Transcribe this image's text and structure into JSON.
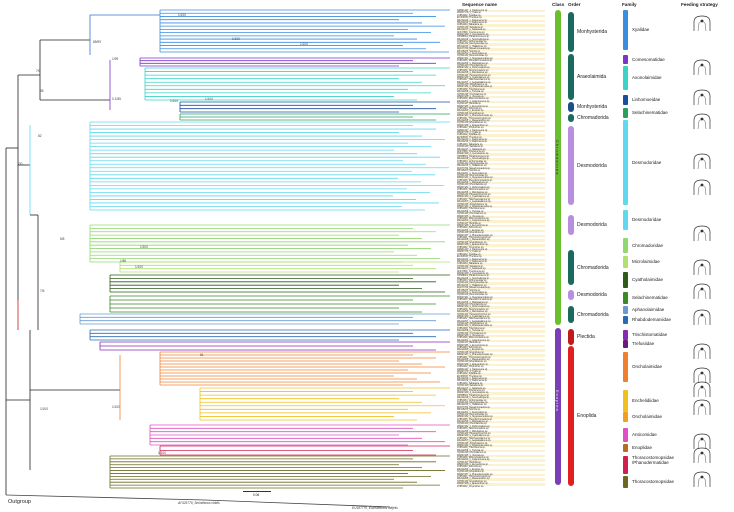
{
  "headers": {
    "sequence_names": "Sequence name",
    "class": "Class",
    "order": "Order",
    "family": "Family",
    "feeding_strategy": "Feeding strategy"
  },
  "classes": [
    {
      "label": "Chromadorea",
      "color": "#6abf2e"
    },
    {
      "label": "Enoplea",
      "color": "#7b3fb5"
    }
  ],
  "orders": [
    {
      "label": "Monhysterida",
      "color": "#1a6b5e"
    },
    {
      "label": "Araeolaimida",
      "color": "#1a6b5e"
    },
    {
      "label": "Monhysterida",
      "color": "#1a4f8a"
    },
    {
      "label": "Chromadorida",
      "color": "#1a6b5e"
    },
    {
      "label": "Desmodorida",
      "color": "#b88ee0"
    },
    {
      "label": "Desmodorida",
      "color": "#b88ee0"
    },
    {
      "label": "Chromadorida",
      "color": "#1a6b5e"
    },
    {
      "label": "Desmodorida",
      "color": "#b88ee0"
    },
    {
      "label": "Chromadorida",
      "color": "#1a6b5e"
    },
    {
      "label": "Plectida",
      "color": "#c01a1a"
    },
    {
      "label": "Enoplida",
      "color": "#e02020"
    }
  ],
  "families": [
    {
      "label": "Xyalidae",
      "color": "#3a8ee0"
    },
    {
      "label": "Comesomatidae",
      "color": "#7b35c8"
    },
    {
      "label": "Axonolaimidae",
      "color": "#3ad3c8"
    },
    {
      "label": "Linhomoeidae",
      "color": "#1a4fa0"
    },
    {
      "label": "Selachinematidae",
      "color": "#2aa060"
    },
    {
      "label": "Desmodoridae",
      "color": "#60d8f0"
    },
    {
      "label": "Desmodoridae",
      "color": "#60d8f0"
    },
    {
      "label": "Chromadoridae",
      "color": "#90d870"
    },
    {
      "label": "Microlaimidae",
      "color": "#b0e070"
    },
    {
      "label": "Cyatholaimidae",
      "color": "#2f5a18"
    },
    {
      "label": "Selachinematidae",
      "color": "#3a8a2a"
    },
    {
      "label": "Aphanolaimidae",
      "color": "#6a9ad0"
    },
    {
      "label": "Rhabdodemaniidae",
      "color": "#2a6ab0"
    },
    {
      "label": "Trischistomatidae",
      "color": "#8a2ab0"
    },
    {
      "label": "Trefusiidae",
      "color": "#6a1a80"
    },
    {
      "label": "Oncholaimidae",
      "color": "#f08030"
    },
    {
      "label": "Enchelidiidae",
      "color": "#f0c020"
    },
    {
      "label": "Oncholaimidae",
      "color": "#f0a020"
    },
    {
      "label": "Anticomidae",
      "color": "#e050c0"
    },
    {
      "label": "Enoplidae",
      "color": "#b07020"
    },
    {
      "label": "Thoracostomopsidae /Phanodermatidae",
      "color": "#d02050"
    },
    {
      "label": "Thoracostomopsidae",
      "color": "#6a6a20"
    }
  ],
  "outgroup": {
    "label": "Outgroup",
    "taxa": [
      "AY325779_Sminthurus viridis",
      "EU187770_Euchaetoleis mitjelis"
    ]
  },
  "scale_bar": "0.06",
  "node_labels": [
    "1/100",
    "85/99",
    "1/99",
    "7/0",
    "1/100",
    "1/100",
    "85",
    "82",
    "7/0",
    "0.1/85",
    "1/100",
    "1/100",
    "5/8",
    "1/100",
    "1/85",
    "1/100",
    "7/6",
    "1/100",
    "1/100",
    "81",
    "1/100"
  ],
  "sequence_rows": [
    "OM041427_1_Daptonema sp.",
    "MN627178_1_Xyala sp.",
    "AY854232_Xyalidae sp.",
    "EU306330_Theristus sp.",
    "MK212244_1_Daptonema sp.",
    "MK212242_1_Daptonema sp.",
    "AY854233_Sabatieria sp.",
    "OQ541440_Sabatieria sp.",
    "MK212247_1_Sabatieria sp.",
    "AF047890_Cyartonema sp.",
    "MN627180_1_Axonolaimus sp.",
    "OP688601_Paralinhomoeus sp.",
    "MK212249_1_Terschellingia sp.",
    "AY854234_Linhomoeidae sp.",
    "OQ541441_Monhysteridae sp.",
    "MK212243_1_Halalaimus sp.",
    "DQ077784_Metachromadora sp.",
    "MF125225_Spirinia sp.",
    "MK212251_1_Desmodora sp.",
    "OQ541442_Desmodoridae sp.",
    "MN627181_1_Stygodesmodora sp.",
    "AY854235_Pseudochromadora sp.",
    "MK212253_1_Molgolaimus sp.",
    "OQ541443_Chromadorita sp.",
    "MN627182_1_Dichromadora sp.",
    "AY854236_Neochromadora sp.",
    "MK212255_1_Microlaimus sp.",
    "OQ541444_Paracanthonchus sp.",
    "MN627183_1_Cyatholaimus sp.",
    "AY854237_Halichoanolaimus sp.",
    "MK212257_1_Aegialoalaimus sp.",
    "OQ541445_Aphanolaimus sp.",
    "MN627184_1_Rhabdodemania sp.",
    "AY854238_Trischistoma sp.",
    "MK212259_1_Trefusia sp.",
    "OQ541446_Oncholaimus sp.",
    "MN627185_1_Viscosia sp.",
    "AY854239_Metoncholaimus sp.",
    "MK212261_1_Calyptronema sp.",
    "OQ541447_Belbolla sp.",
    "MN627186_1_Eurystomina sp.",
    "AY854240_Anticoma sp.",
    "MK212263_1_Enoplus sp.",
    "OQ541448_Enoploides sp.",
    "MN627187_1_Phanodermopsis sp.",
    "AY854241_Thoracostomopsis sp.",
    "MK212265_1_Mesacanthion sp.",
    "OQ541449_Enoplolaimus sp.",
    "MN627188_1_Epacanthion sp.",
    "AY854242_Oxyonchus sp."
  ]
}
